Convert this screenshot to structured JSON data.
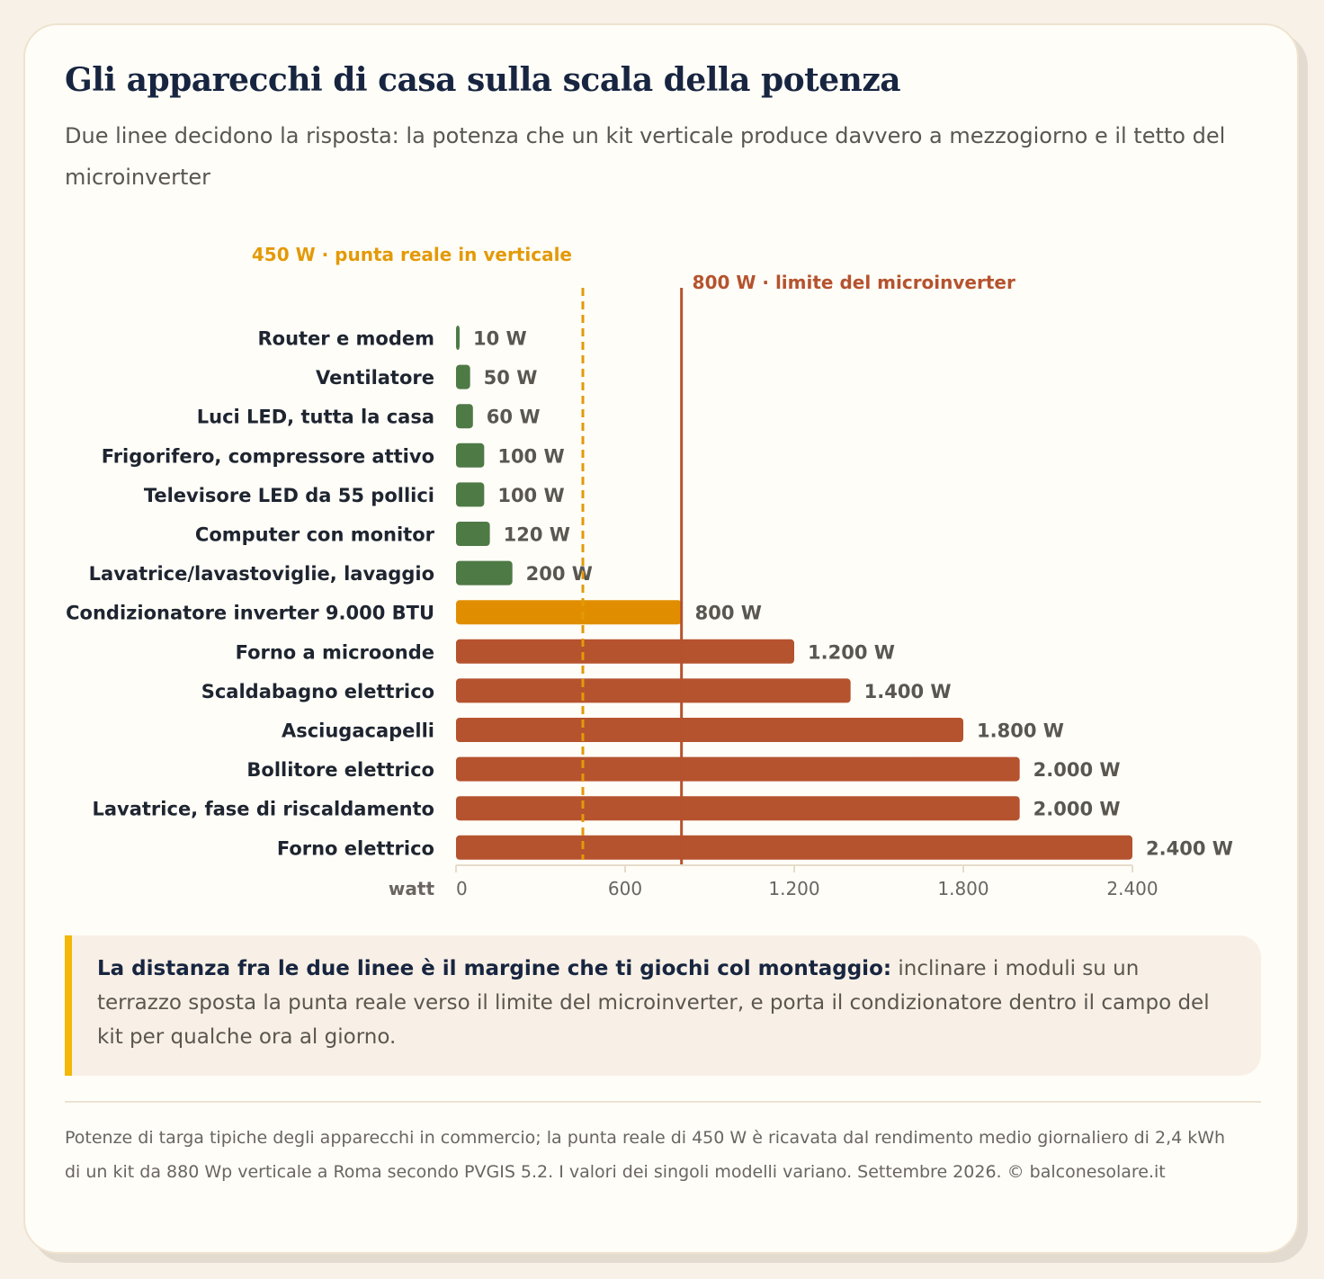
{
  "title": "Gli apparecchi di casa sulla scala della potenza",
  "subtitle": "Due linee decidono la risposta: la potenza che un kit verticale produce davvero a mezzogiorno e il tetto del microinverter",
  "callout": {
    "bold": "La distanza fra le due linee è il margine che ti giochi col montaggio:",
    "text": " inclinare i moduli su un terrazzo sposta la punta reale verso il limite del microinverter, e porta il condizionatore dentro il campo del kit per qualche ora al giorno."
  },
  "footer": "Potenze di targa tipiche degli apparecchi in commercio; la punta reale di 450 W è ricavata dal rendimento medio giornaliero di 2,4 kWh di un kit da 880 Wp verticale a Roma secondo PVGIS 5.2. I valori dei singoli modelli variano. Settembre 2026. © balconesolare.it",
  "colors": {
    "green": "#4e7a45",
    "amber": "#e08e00",
    "rust": "#b5532e",
    "amber_line": "#e39a08",
    "rust_line": "#b5532e"
  },
  "chart_data": {
    "type": "bar",
    "orientation": "horizontal",
    "xlabel": "watt",
    "xlim": [
      0,
      2400
    ],
    "xticks": [
      0,
      600,
      1200,
      1800,
      2400
    ],
    "xtick_labels": [
      "0",
      "600",
      "1.200",
      "1.800",
      "2.400"
    ],
    "categories": [
      "Router e modem",
      "Ventilatore",
      "Luci LED, tutta la casa",
      "Frigorifero, compressore attivo",
      "Televisore LED da 55 pollici",
      "Computer con monitor",
      "Lavatrice/lavastoviglie, lavaggio",
      "Condizionatore inverter 9.000 BTU",
      "Forno a microonde",
      "Scaldabagno elettrico",
      "Asciugacapelli",
      "Bollitore elettrico",
      "Lavatrice, fase di riscaldamento",
      "Forno elettrico"
    ],
    "values": [
      10,
      50,
      60,
      100,
      100,
      120,
      200,
      800,
      1200,
      1400,
      1800,
      2000,
      2000,
      2400
    ],
    "value_labels": [
      "10 W",
      "50 W",
      "60 W",
      "100 W",
      "100 W",
      "120 W",
      "200 W",
      "800 W",
      "1.200 W",
      "1.400 W",
      "1.800 W",
      "2.000 W",
      "2.000 W",
      "2.400 W"
    ],
    "reference_lines": [
      {
        "value": 450,
        "label": "450 W · punta reale in verticale",
        "style": "dashed",
        "color": "#e39a08"
      },
      {
        "value": 800,
        "label": "800 W · limite del microinverter",
        "style": "solid",
        "color": "#b5532e"
      }
    ]
  }
}
